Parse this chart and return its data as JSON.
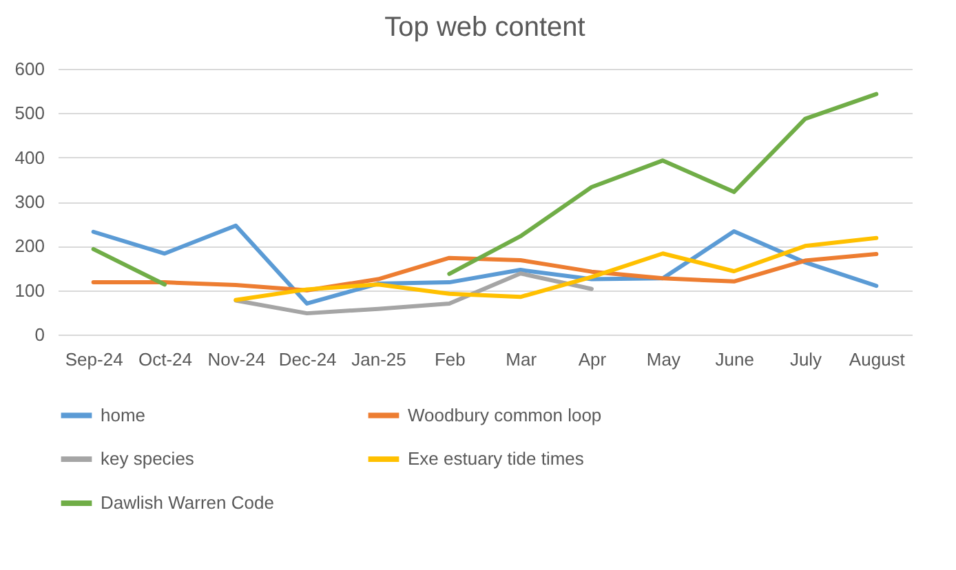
{
  "chart_data": {
    "type": "line",
    "title": "Top web content",
    "categories": [
      "Sep-24",
      "Oct-24",
      "Nov-24",
      "Dec-24",
      "Jan-25",
      "Feb",
      "Mar",
      "Apr",
      "May",
      "June",
      "July",
      "August"
    ],
    "series": [
      {
        "name": "home",
        "color": "#5b9bd5",
        "values": [
          232,
          183,
          246,
          70,
          115,
          118,
          146,
          125,
          127,
          233,
          163,
          110
        ]
      },
      {
        "name": "Woodbury common loop",
        "color": "#ed7d31",
        "values": [
          118,
          118,
          112,
          100,
          125,
          173,
          168,
          142,
          127,
          120,
          167,
          182
        ]
      },
      {
        "name": "key species",
        "color": "#a5a5a5",
        "values": [
          null,
          null,
          77,
          48,
          58,
          70,
          138,
          103,
          null,
          null,
          null,
          null
        ]
      },
      {
        "name": "Exe estuary tide times",
        "color": "#ffc000",
        "values": [
          null,
          null,
          78,
          102,
          113,
          92,
          85,
          130,
          183,
          143,
          200,
          218
        ]
      },
      {
        "name": "Dawlish Warren Code",
        "color": "#70ad47",
        "values": [
          193,
          113,
          null,
          null,
          null,
          137,
          222,
          333,
          393,
          322,
          487,
          543
        ]
      }
    ],
    "ylim": [
      0,
      600
    ],
    "yticks": [
      0,
      100,
      200,
      300,
      400,
      500,
      600
    ],
    "grid": "y",
    "legend": "bottom",
    "marker": "none",
    "line_style": "solid"
  }
}
